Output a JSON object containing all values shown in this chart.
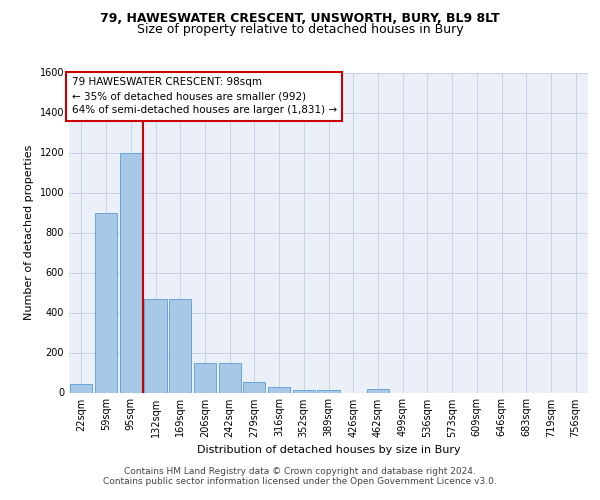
{
  "title_line1": "79, HAWESWATER CRESCENT, UNSWORTH, BURY, BL9 8LT",
  "title_line2": "Size of property relative to detached houses in Bury",
  "xlabel": "Distribution of detached houses by size in Bury",
  "ylabel": "Number of detached properties",
  "footer_line1": "Contains HM Land Registry data © Crown copyright and database right 2024.",
  "footer_line2": "Contains public sector information licensed under the Open Government Licence v3.0.",
  "annotation_line1": "79 HAWESWATER CRESCENT: 98sqm",
  "annotation_line2": "← 35% of detached houses are smaller (992)",
  "annotation_line3": "64% of semi-detached houses are larger (1,831) →",
  "bar_labels": [
    "22sqm",
    "59sqm",
    "95sqm",
    "132sqm",
    "169sqm",
    "206sqm",
    "242sqm",
    "279sqm",
    "316sqm",
    "352sqm",
    "389sqm",
    "426sqm",
    "462sqm",
    "499sqm",
    "536sqm",
    "573sqm",
    "609sqm",
    "646sqm",
    "683sqm",
    "719sqm",
    "756sqm"
  ],
  "bar_values": [
    45,
    900,
    1200,
    470,
    470,
    150,
    150,
    55,
    30,
    15,
    15,
    0,
    20,
    0,
    0,
    0,
    0,
    0,
    0,
    0,
    0
  ],
  "bar_color": "#a8c8e8",
  "bar_edge_color": "#5a9fd4",
  "vline_color": "#cc0000",
  "vline_position": 2.5,
  "ylim": [
    0,
    1600
  ],
  "yticks": [
    0,
    200,
    400,
    600,
    800,
    1000,
    1200,
    1400,
    1600
  ],
  "grid_color": "#c8d4e8",
  "bg_color": "#eaeff8",
  "annotation_box_edge_color": "#cc0000",
  "annotation_box_face_color": "#ffffff",
  "title1_fontsize": 9,
  "title2_fontsize": 9,
  "ylabel_fontsize": 8,
  "xlabel_fontsize": 8,
  "tick_fontsize": 7,
  "footer_fontsize": 6.5,
  "ann_fontsize": 7.5
}
